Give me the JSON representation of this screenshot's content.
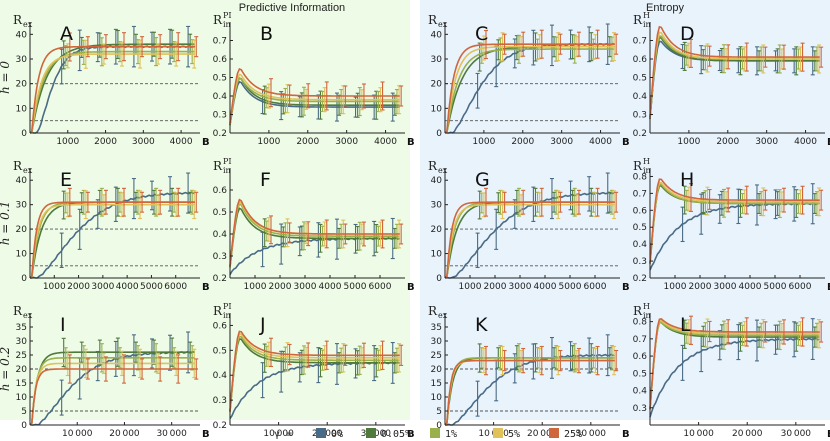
{
  "groups": [
    {
      "title": "Predictive Information"
    },
    {
      "title": "Entropy"
    }
  ],
  "row_labels": [
    "h = 0",
    "h = 0.1",
    "h = 0.2"
  ],
  "x_label": "B",
  "legend": {
    "gamma_label": "γ =",
    "items": [
      {
        "label": "0%",
        "color": "#4a6b85"
      },
      {
        "label": "0.05%",
        "color": "#4f7a3c"
      },
      {
        "label": "1%",
        "color": "#9ab04a"
      },
      {
        "label": "5%",
        "color": "#e0c15a"
      },
      {
        "label": "25%",
        "color": "#d0663c"
      }
    ]
  },
  "colors": {
    "left_bg": "#eefbe6",
    "right_bg": "#e8f3fc",
    "dashed": "#555555",
    "axis": "#222222"
  },
  "chart_data": [
    {
      "panel": "A",
      "type": "line",
      "ylabel": "R",
      "ysub": "ex",
      "ysup": "",
      "xlabel": "B",
      "xmax": 4500,
      "xticks": [
        1000,
        2000,
        3000,
        4000
      ],
      "ymin": 0,
      "ymax": 45,
      "yticks": [
        0,
        10,
        20,
        30,
        40
      ],
      "dashed": [
        20,
        5
      ],
      "series": [
        {
          "name": "0%",
          "plateau": 35,
          "tau": 500,
          "kind": "rise_slow"
        },
        {
          "name": "0.05%",
          "plateau": 36,
          "tau": 400,
          "kind": "rise"
        },
        {
          "name": "1%",
          "plateau": 33,
          "tau": 300,
          "kind": "rise"
        },
        {
          "name": "5%",
          "plateau": 32,
          "tau": 250,
          "kind": "rise"
        },
        {
          "name": "25%",
          "plateau": 35,
          "tau": 180,
          "kind": "rise"
        }
      ]
    },
    {
      "panel": "B",
      "type": "line",
      "ylabel": "R",
      "ysub": "in",
      "ysup": "PI",
      "xlabel": "B",
      "xmax": 4500,
      "xticks": [
        1000,
        2000,
        3000,
        4000
      ],
      "ymin": 0.2,
      "ymax": 0.8,
      "yticks": [
        0.2,
        0.3,
        0.4,
        0.5,
        0.6,
        0.7
      ],
      "dashed": [],
      "series": [
        {
          "name": "0%",
          "plateau": 0.34,
          "peak": 0.48,
          "kind": "peak"
        },
        {
          "name": "0.05%",
          "plateau": 0.35,
          "peak": 0.5,
          "kind": "peak"
        },
        {
          "name": "1%",
          "plateau": 0.37,
          "peak": 0.5,
          "kind": "peak"
        },
        {
          "name": "5%",
          "plateau": 0.38,
          "peak": 0.52,
          "kind": "peak"
        },
        {
          "name": "25%",
          "plateau": 0.4,
          "peak": 0.55,
          "kind": "peak"
        }
      ]
    },
    {
      "panel": "C",
      "type": "line",
      "ylabel": "R",
      "ysub": "ex",
      "ysup": "",
      "xlabel": "B",
      "xmax": 4500,
      "xticks": [
        1000,
        2000,
        3000,
        4000
      ],
      "ymin": 0,
      "ymax": 45,
      "yticks": [
        0,
        10,
        20,
        30,
        40
      ],
      "dashed": [
        20,
        5
      ],
      "series": [
        {
          "name": "0%",
          "plateau": 36,
          "tau": 900,
          "kind": "rise_slow"
        },
        {
          "name": "0.05%",
          "plateau": 35,
          "tau": 400,
          "kind": "rise"
        },
        {
          "name": "1%",
          "plateau": 34,
          "tau": 300,
          "kind": "rise"
        },
        {
          "name": "5%",
          "plateau": 35,
          "tau": 230,
          "kind": "rise"
        },
        {
          "name": "25%",
          "plateau": 36,
          "tau": 180,
          "kind": "rise"
        }
      ]
    },
    {
      "panel": "D",
      "type": "line",
      "ylabel": "R",
      "ysub": "in",
      "ysup": "H",
      "xlabel": "B",
      "xmax": 4500,
      "xticks": [
        1000,
        2000,
        3000,
        4000
      ],
      "ymin": 0.2,
      "ymax": 0.8,
      "yticks": [
        0.2,
        0.3,
        0.4,
        0.5,
        0.6,
        0.7
      ],
      "dashed": [],
      "series": [
        {
          "name": "0%",
          "plateau": 0.59,
          "peak": 0.7,
          "kind": "peak"
        },
        {
          "name": "0.05%",
          "plateau": 0.59,
          "peak": 0.72,
          "kind": "peak"
        },
        {
          "name": "1%",
          "plateau": 0.6,
          "peak": 0.73,
          "kind": "peak"
        },
        {
          "name": "5%",
          "plateau": 0.6,
          "peak": 0.75,
          "kind": "peak"
        },
        {
          "name": "25%",
          "plateau": 0.61,
          "peak": 0.78,
          "kind": "peak"
        }
      ]
    },
    {
      "panel": "E",
      "type": "line",
      "ylabel": "R",
      "ysub": "ex",
      "ysup": "",
      "xlabel": "B",
      "xmax": 7000,
      "xticks": [
        1000,
        2000,
        3000,
        4000,
        5000,
        6000
      ],
      "ymin": 0,
      "ymax": 45,
      "yticks": [
        0,
        10,
        20,
        30,
        40
      ],
      "dashed": [
        20,
        5
      ],
      "series": [
        {
          "name": "0%",
          "plateau": 35,
          "tau": 2000,
          "kind": "rise_slow"
        },
        {
          "name": "0.05%",
          "plateau": 31,
          "tau": 400,
          "kind": "rise"
        },
        {
          "name": "1%",
          "plateau": 31,
          "tau": 300,
          "kind": "rise"
        },
        {
          "name": "5%",
          "plateau": 30,
          "tau": 250,
          "kind": "rise"
        },
        {
          "name": "25%",
          "plateau": 31,
          "tau": 200,
          "kind": "rise"
        }
      ]
    },
    {
      "panel": "F",
      "type": "line",
      "ylabel": "R",
      "ysub": "in",
      "ysup": "PI",
      "xlabel": "B",
      "xmax": 7000,
      "xticks": [
        1000,
        2000,
        3000,
        4000,
        5000,
        6000
      ],
      "ymin": 0.2,
      "ymax": 0.7,
      "yticks": [
        0.2,
        0.3,
        0.4,
        0.5,
        0.6
      ],
      "dashed": [],
      "series": [
        {
          "name": "0%",
          "plateau": 0.38,
          "peak": 0.38,
          "kind": "slowrise"
        },
        {
          "name": "0.05%",
          "plateau": 0.38,
          "peak": 0.52,
          "kind": "peak"
        },
        {
          "name": "1%",
          "plateau": 0.39,
          "peak": 0.54,
          "kind": "peak"
        },
        {
          "name": "5%",
          "plateau": 0.4,
          "peak": 0.55,
          "kind": "peak"
        },
        {
          "name": "25%",
          "plateau": 0.4,
          "peak": 0.56,
          "kind": "peak"
        }
      ]
    },
    {
      "panel": "G",
      "type": "line",
      "ylabel": "R",
      "ysub": "ex",
      "ysup": "",
      "xlabel": "B",
      "xmax": 7000,
      "xticks": [
        1000,
        2000,
        3000,
        4000,
        5000,
        6000
      ],
      "ymin": 0,
      "ymax": 45,
      "yticks": [
        0,
        10,
        20,
        30,
        40
      ],
      "dashed": [
        20,
        5
      ],
      "series": [
        {
          "name": "0%",
          "plateau": 35,
          "tau": 2000,
          "kind": "rise_slow"
        },
        {
          "name": "0.05%",
          "plateau": 31,
          "tau": 400,
          "kind": "rise"
        },
        {
          "name": "1%",
          "plateau": 31,
          "tau": 300,
          "kind": "rise"
        },
        {
          "name": "5%",
          "plateau": 30,
          "tau": 250,
          "kind": "rise"
        },
        {
          "name": "25%",
          "plateau": 31,
          "tau": 200,
          "kind": "rise"
        }
      ]
    },
    {
      "panel": "H",
      "type": "line",
      "ylabel": "R",
      "ysub": "in",
      "ysup": "H",
      "xlabel": "B",
      "xmax": 7000,
      "xticks": [
        1000,
        2000,
        3000,
        4000,
        5000,
        6000
      ],
      "ymin": 0.2,
      "ymax": 0.85,
      "yticks": [
        0.2,
        0.3,
        0.4,
        0.5,
        0.6,
        0.7,
        0.8
      ],
      "dashed": [],
      "series": [
        {
          "name": "0%",
          "plateau": 0.64,
          "peak": 0.64,
          "kind": "slowrise"
        },
        {
          "name": "0.05%",
          "plateau": 0.64,
          "peak": 0.75,
          "kind": "peak"
        },
        {
          "name": "1%",
          "plateau": 0.64,
          "peak": 0.76,
          "kind": "peak"
        },
        {
          "name": "5%",
          "plateau": 0.65,
          "peak": 0.77,
          "kind": "peak"
        },
        {
          "name": "25%",
          "plateau": 0.66,
          "peak": 0.79,
          "kind": "peak"
        }
      ]
    },
    {
      "panel": "I",
      "type": "line",
      "ylabel": "R",
      "ysub": "ex",
      "ysup": "",
      "xlabel": "B",
      "xmax": 36000,
      "xticks": [
        10000,
        20000,
        30000
      ],
      "ymin": 0,
      "ymax": 40,
      "yticks": [
        0,
        5,
        10,
        15,
        20,
        25,
        30,
        35
      ],
      "dashed": [
        20,
        5
      ],
      "series": [
        {
          "name": "0%",
          "plateau": 26,
          "tau": 9000,
          "kind": "rise_slow"
        },
        {
          "name": "0.05%",
          "plateau": 26,
          "tau": 1200,
          "kind": "rise"
        },
        {
          "name": "1%",
          "plateau": 24,
          "tau": 1000,
          "kind": "rise"
        },
        {
          "name": "5%",
          "plateau": 22,
          "tau": 900,
          "kind": "rise"
        },
        {
          "name": "25%",
          "plateau": 20,
          "tau": 800,
          "kind": "rise"
        }
      ]
    },
    {
      "panel": "J",
      "type": "line",
      "ylabel": "R",
      "ysub": "in",
      "ysup": "PI",
      "xlabel": "B",
      "xmax": 36000,
      "xticks": [
        10000,
        20000,
        30000
      ],
      "ymin": 0.2,
      "ymax": 0.65,
      "yticks": [
        0.2,
        0.3,
        0.4,
        0.5,
        0.6
      ],
      "dashed": [],
      "series": [
        {
          "name": "0%",
          "plateau": 0.45,
          "peak": 0.45,
          "kind": "slowrise"
        },
        {
          "name": "0.05%",
          "plateau": 0.45,
          "peak": 0.55,
          "kind": "peak"
        },
        {
          "name": "1%",
          "plateau": 0.46,
          "peak": 0.56,
          "kind": "peak"
        },
        {
          "name": "5%",
          "plateau": 0.47,
          "peak": 0.57,
          "kind": "peak"
        },
        {
          "name": "25%",
          "plateau": 0.48,
          "peak": 0.58,
          "kind": "peak"
        }
      ]
    },
    {
      "panel": "K",
      "type": "line",
      "ylabel": "R",
      "ysub": "ex",
      "ysup": "",
      "xlabel": "B",
      "xmax": 36000,
      "xticks": [
        10000,
        20000,
        30000
      ],
      "ymin": 0,
      "ymax": 40,
      "yticks": [
        0,
        5,
        10,
        15,
        20,
        25,
        30,
        35
      ],
      "dashed": [
        20,
        5
      ],
      "series": [
        {
          "name": "0%",
          "plateau": 25,
          "tau": 9000,
          "kind": "rise_slow"
        },
        {
          "name": "0.05%",
          "plateau": 24,
          "tau": 1200,
          "kind": "rise"
        },
        {
          "name": "1%",
          "plateau": 24,
          "tau": 1000,
          "kind": "rise"
        },
        {
          "name": "5%",
          "plateau": 23,
          "tau": 900,
          "kind": "rise"
        },
        {
          "name": "25%",
          "plateau": 23,
          "tau": 800,
          "kind": "rise"
        }
      ]
    },
    {
      "panel": "L",
      "type": "line",
      "ylabel": "R",
      "ysub": "in",
      "ysup": "H",
      "xlabel": "B",
      "xmax": 36000,
      "xticks": [
        10000,
        20000,
        30000
      ],
      "ymin": 0.2,
      "ymax": 0.85,
      "yticks": [
        0.3,
        0.4,
        0.5,
        0.6,
        0.7,
        0.8
      ],
      "dashed": [],
      "series": [
        {
          "name": "0%",
          "plateau": 0.7,
          "peak": 0.7,
          "kind": "slowrise"
        },
        {
          "name": "0.05%",
          "plateau": 0.71,
          "peak": 0.8,
          "kind": "peak"
        },
        {
          "name": "1%",
          "plateau": 0.72,
          "peak": 0.8,
          "kind": "peak"
        },
        {
          "name": "5%",
          "plateau": 0.73,
          "peak": 0.81,
          "kind": "peak"
        },
        {
          "name": "25%",
          "plateau": 0.74,
          "peak": 0.82,
          "kind": "peak"
        }
      ]
    }
  ]
}
